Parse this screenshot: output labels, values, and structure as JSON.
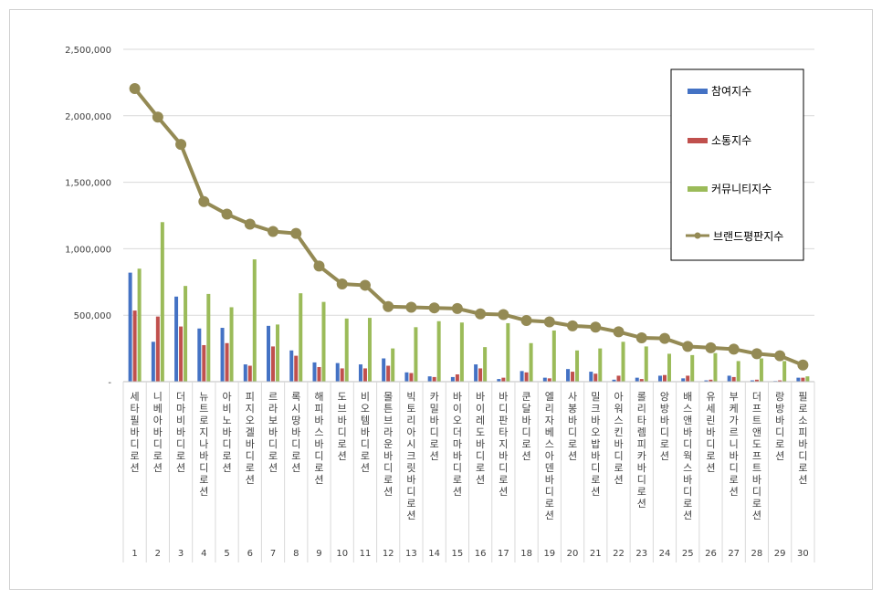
{
  "chart_data": {
    "type": "bar",
    "categories": [
      "세타필 바디로션",
      "니베아 바디로션",
      "더마비 바디로션",
      "뉴트로지나 바디로션",
      "아비노 바디로션",
      "피지오겔 바디로션",
      "르라보 바디로션",
      "록시땅 바디로션",
      "해피바스 바디로션",
      "도브 바디로션",
      "비오템 바디로션",
      "몰튼브라운 바디로션",
      "빅토리아시크릿 바디로션",
      "카밀 바디로션",
      "바이오더마 바디로션",
      "바이레도 바디로션",
      "바디판타지 바디로션",
      "쿤달 바디로션",
      "엘리자베스아덴 바디로션",
      "사봉 바디로션",
      "밀크바오밥 바디로션",
      "아워스킨 바디로션",
      "롤리타렘피카 바디로션",
      "앙방 바디로션",
      "배스앤바디웍스 바디로션",
      "유세린 바디로션",
      "부케가르니 바디로션",
      "더프트앤도프트 바디로션",
      "랑방 바디로션",
      "필로소피 바디로션"
    ],
    "x_numbers": [
      "1",
      "2",
      "3",
      "4",
      "5",
      "6",
      "7",
      "8",
      "9",
      "10",
      "11",
      "12",
      "13",
      "14",
      "15",
      "16",
      "17",
      "18",
      "19",
      "20",
      "21",
      "22",
      "23",
      "24",
      "25",
      "26",
      "27",
      "28",
      "29",
      "30"
    ],
    "series": [
      {
        "name": "참여지수",
        "color": "#4472C4",
        "values": [
          820000,
          300000,
          640000,
          400000,
          405000,
          130000,
          420000,
          235000,
          145000,
          140000,
          130000,
          175000,
          70000,
          40000,
          35000,
          130000,
          20000,
          80000,
          30000,
          95000,
          75000,
          15000,
          30000,
          45000,
          25000,
          10000,
          45000,
          10000,
          5000,
          30000
        ]
      },
      {
        "name": "소통지수",
        "color": "#C0504D",
        "values": [
          535000,
          490000,
          415000,
          275000,
          290000,
          120000,
          265000,
          195000,
          110000,
          100000,
          100000,
          120000,
          65000,
          35000,
          55000,
          100000,
          30000,
          70000,
          25000,
          75000,
          60000,
          45000,
          20000,
          50000,
          45000,
          15000,
          35000,
          15000,
          10000,
          30000
        ]
      },
      {
        "name": "커뮤니티지수",
        "color": "#9BBB59",
        "values": [
          850000,
          1200000,
          720000,
          660000,
          560000,
          920000,
          430000,
          665000,
          600000,
          475000,
          480000,
          250000,
          410000,
          455000,
          445000,
          260000,
          440000,
          290000,
          385000,
          235000,
          250000,
          300000,
          265000,
          210000,
          200000,
          215000,
          155000,
          175000,
          155000,
          40000
        ]
      },
      {
        "name": "브랜드평판지수",
        "color": "#948A54",
        "values": [
          2205000,
          1990000,
          1785000,
          1355000,
          1260000,
          1185000,
          1130000,
          1115000,
          870000,
          735000,
          725000,
          565000,
          560000,
          555000,
          550000,
          510000,
          505000,
          460000,
          450000,
          420000,
          410000,
          375000,
          330000,
          325000,
          265000,
          255000,
          245000,
          210000,
          195000,
          125000
        ]
      }
    ],
    "ylim": [
      0,
      2500000
    ],
    "yticks": [
      "-",
      "500,000",
      "1,000,000",
      "1,500,000",
      "2,000,000",
      "2,500,000"
    ],
    "grid": true,
    "legend_position": "top-right"
  }
}
